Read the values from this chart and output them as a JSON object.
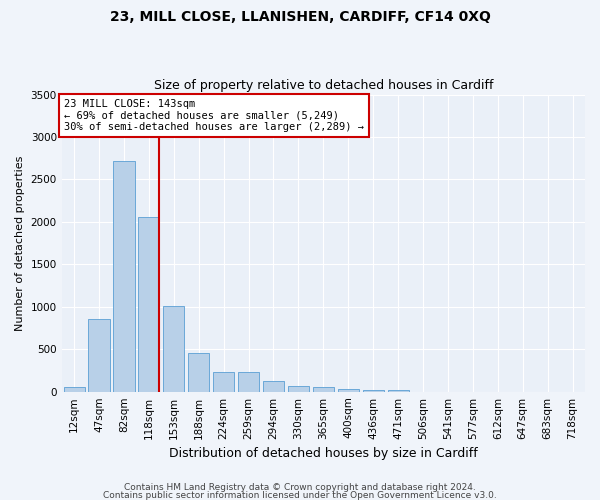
{
  "title_line1": "23, MILL CLOSE, LLANISHEN, CARDIFF, CF14 0XQ",
  "title_line2": "Size of property relative to detached houses in Cardiff",
  "xlabel": "Distribution of detached houses by size in Cardiff",
  "ylabel": "Number of detached properties",
  "bin_labels": [
    "12sqm",
    "47sqm",
    "82sqm",
    "118sqm",
    "153sqm",
    "188sqm",
    "224sqm",
    "259sqm",
    "294sqm",
    "330sqm",
    "365sqm",
    "400sqm",
    "436sqm",
    "471sqm",
    "506sqm",
    "541sqm",
    "577sqm",
    "612sqm",
    "647sqm",
    "683sqm",
    "718sqm"
  ],
  "bar_values": [
    60,
    860,
    2720,
    2060,
    1010,
    455,
    230,
    230,
    130,
    65,
    55,
    30,
    20,
    20,
    0,
    0,
    0,
    0,
    0,
    0,
    0
  ],
  "bar_color": "#b8d0e8",
  "bar_edgecolor": "#5a9fd4",
  "vline_bin_index": 3,
  "annotation_text": "23 MILL CLOSE: 143sqm\n← 69% of detached houses are smaller (5,249)\n30% of semi-detached houses are larger (2,289) →",
  "annotation_box_color": "#ffffff",
  "annotation_border_color": "#cc0000",
  "vline_color": "#cc0000",
  "ylim": [
    0,
    3500
  ],
  "yticks": [
    0,
    500,
    1000,
    1500,
    2000,
    2500,
    3000,
    3500
  ],
  "footer_line1": "Contains HM Land Registry data © Crown copyright and database right 2024.",
  "footer_line2": "Contains public sector information licensed under the Open Government Licence v3.0.",
  "background_color": "#f0f4fa",
  "plot_bg_color": "#eaf0f8",
  "title1_fontsize": 10,
  "title2_fontsize": 9,
  "xlabel_fontsize": 9,
  "ylabel_fontsize": 8,
  "tick_fontsize": 7.5,
  "footer_fontsize": 6.5,
  "annot_fontsize": 7.5
}
